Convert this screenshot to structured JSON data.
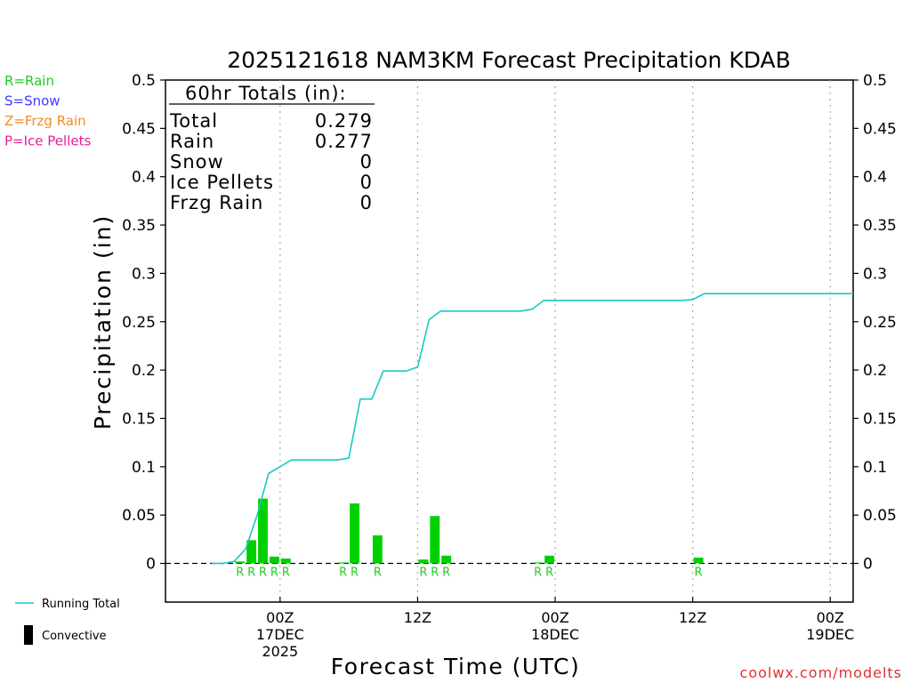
{
  "chart_data": {
    "type": "bar",
    "title": "2025121618 NAM3KM Forecast Precipitation KDAB",
    "xlabel": "Forecast Time (UTC)",
    "ylabel": "Precipitation (in)",
    "ylim": [
      -0.04,
      0.5
    ],
    "y_ticks": [
      0,
      0.05,
      0.1,
      0.15,
      0.2,
      0.25,
      0.3,
      0.35,
      0.4,
      0.45,
      0.5
    ],
    "y_tick_labels": [
      "0",
      "0.05",
      "0.1",
      "0.15",
      "0.2",
      "0.25",
      "0.3",
      "0.35",
      "0.4",
      "0.45",
      "0.5"
    ],
    "x_unit": "forecast hour",
    "xlim": [
      -4,
      56
    ],
    "x_ticks": [
      {
        "hour": 6,
        "line1": "00Z",
        "line2": "17DEC",
        "line3": "2025"
      },
      {
        "hour": 18,
        "line1": "12Z",
        "line2": "",
        "line3": ""
      },
      {
        "hour": 30,
        "line1": "00Z",
        "line2": "18DEC",
        "line3": ""
      },
      {
        "hour": 42,
        "line1": "12Z",
        "line2": "",
        "line3": ""
      },
      {
        "hour": 54,
        "line1": "00Z",
        "line2": "19DEC",
        "line3": ""
      }
    ],
    "bars": [
      {
        "hour": 3,
        "value": 0.002,
        "type": "R"
      },
      {
        "hour": 4,
        "value": 0.024,
        "type": "R"
      },
      {
        "hour": 5,
        "value": 0.067,
        "type": "R"
      },
      {
        "hour": 6,
        "value": 0.007,
        "type": "R"
      },
      {
        "hour": 7,
        "value": 0.005,
        "type": "R"
      },
      {
        "hour": 12,
        "value": 0.001,
        "type": "R"
      },
      {
        "hour": 13,
        "value": 0.062,
        "type": "R"
      },
      {
        "hour": 15,
        "value": 0.029,
        "type": "R"
      },
      {
        "hour": 19,
        "value": 0.004,
        "type": "R"
      },
      {
        "hour": 20,
        "value": 0.049,
        "type": "R"
      },
      {
        "hour": 21,
        "value": 0.008,
        "type": "R"
      },
      {
        "hour": 29,
        "value": 0.001,
        "type": "R"
      },
      {
        "hour": 30,
        "value": 0.008,
        "type": "R"
      },
      {
        "hour": 43,
        "value": 0.006,
        "type": "R"
      }
    ],
    "running_total": {
      "name": "Running Total",
      "color": "#19c8c8",
      "points": [
        [
          0,
          0
        ],
        [
          1,
          0
        ],
        [
          2,
          0.002
        ],
        [
          3,
          0.015
        ],
        [
          4,
          0.05
        ],
        [
          5,
          0.093
        ],
        [
          6,
          0.1
        ],
        [
          7,
          0.107
        ],
        [
          8,
          0.107
        ],
        [
          9,
          0.107
        ],
        [
          10,
          0.107
        ],
        [
          11,
          0.107
        ],
        [
          12,
          0.109
        ],
        [
          13,
          0.17
        ],
        [
          14,
          0.17
        ],
        [
          15,
          0.199
        ],
        [
          16,
          0.199
        ],
        [
          17,
          0.199
        ],
        [
          18,
          0.203
        ],
        [
          19,
          0.252
        ],
        [
          20,
          0.261
        ],
        [
          21,
          0.261
        ],
        [
          22,
          0.261
        ],
        [
          23,
          0.261
        ],
        [
          24,
          0.261
        ],
        [
          25,
          0.261
        ],
        [
          26,
          0.261
        ],
        [
          27,
          0.261
        ],
        [
          28,
          0.263
        ],
        [
          29,
          0.272
        ],
        [
          30,
          0.272
        ],
        [
          31,
          0.272
        ],
        [
          32,
          0.272
        ],
        [
          33,
          0.272
        ],
        [
          34,
          0.272
        ],
        [
          35,
          0.272
        ],
        [
          36,
          0.272
        ],
        [
          37,
          0.272
        ],
        [
          38,
          0.272
        ],
        [
          39,
          0.272
        ],
        [
          40,
          0.272
        ],
        [
          41,
          0.272
        ],
        [
          42,
          0.273
        ],
        [
          43,
          0.279
        ],
        [
          44,
          0.279
        ],
        [
          50,
          0.279
        ],
        [
          56,
          0.279
        ]
      ]
    },
    "totals_box": {
      "header": "60hr Totals (in):",
      "rows": [
        {
          "label": "Total",
          "value": "0.279"
        },
        {
          "label": "Rain",
          "value": "0.277"
        },
        {
          "label": "Snow",
          "value": "0"
        },
        {
          "label": "Ice Pellets",
          "value": "0"
        },
        {
          "label": "Frzg Rain",
          "value": "0"
        }
      ]
    },
    "type_legend": [
      {
        "text": "R=Rain",
        "color": "#22cc22"
      },
      {
        "text": "S=Snow",
        "color": "#3c3cff"
      },
      {
        "text": "Z=Frzg Rain",
        "color": "#f08c28"
      },
      {
        "text": "P=Ice Pellets",
        "color": "#e61e96"
      }
    ],
    "series_legend": [
      {
        "text": "Running Total",
        "symbol": "line",
        "color": "#19c8c8"
      },
      {
        "text": "Convective",
        "symbol": "bar",
        "color": "#000000"
      }
    ],
    "colors": {
      "rain_bar": "#00d000",
      "rain_label": "#22cc22",
      "grid": "#aaaaaa"
    },
    "credit": "coolwx.com/modelts",
    "credit_color": "#e03030"
  }
}
